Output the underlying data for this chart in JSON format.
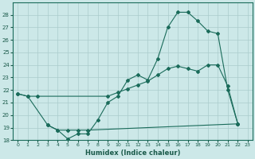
{
  "xlabel": "Humidex (Indice chaleur)",
  "background_color": "#cce8e8",
  "grid_color": "#aacccc",
  "line_color": "#1a6b5a",
  "xlim": [
    -0.5,
    23.5
  ],
  "ylim": [
    18,
    29
  ],
  "yticks": [
    18,
    19,
    20,
    21,
    22,
    23,
    24,
    25,
    26,
    27,
    28
  ],
  "xticks": [
    0,
    1,
    2,
    3,
    4,
    5,
    6,
    7,
    8,
    9,
    10,
    11,
    12,
    13,
    14,
    15,
    16,
    17,
    18,
    19,
    20,
    21,
    22,
    23
  ],
  "series1_x": [
    0,
    1,
    3,
    4,
    5,
    6,
    7,
    8,
    9,
    10,
    11,
    12,
    13,
    14,
    15,
    16,
    17,
    18,
    19,
    20,
    21,
    22
  ],
  "series1_y": [
    21.7,
    21.5,
    19.2,
    18.8,
    18.1,
    18.5,
    18.5,
    19.6,
    21.0,
    21.5,
    22.8,
    23.2,
    22.8,
    24.5,
    27.0,
    28.2,
    28.2,
    27.5,
    26.7,
    26.5,
    22.0,
    19.3
  ],
  "series2_x": [
    0,
    1,
    2,
    9,
    10,
    11,
    12,
    13,
    14,
    15,
    16,
    17,
    18,
    19,
    20,
    21,
    22
  ],
  "series2_y": [
    21.7,
    21.5,
    21.5,
    21.5,
    21.8,
    22.1,
    22.4,
    22.7,
    23.2,
    23.7,
    23.9,
    23.7,
    23.5,
    24.0,
    24.0,
    22.3,
    19.3
  ],
  "series3_x": [
    3,
    4,
    5,
    6,
    7,
    22
  ],
  "series3_y": [
    19.2,
    18.8,
    18.8,
    18.8,
    18.8,
    19.3
  ]
}
